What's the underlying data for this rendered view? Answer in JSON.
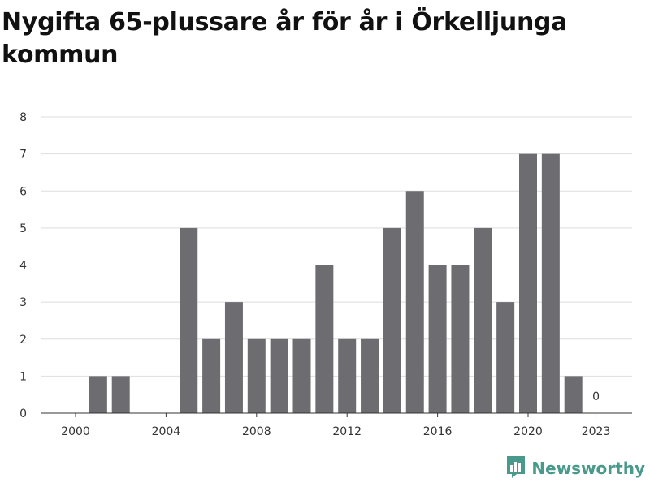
{
  "chart_data": {
    "type": "bar",
    "title": "Nygifta 65-plussare år för år i Örkelljunga kommun",
    "xlabel": "",
    "ylabel": "",
    "categories": [
      2000,
      2001,
      2002,
      2003,
      2004,
      2005,
      2006,
      2007,
      2008,
      2009,
      2010,
      2011,
      2012,
      2013,
      2014,
      2015,
      2016,
      2017,
      2018,
      2019,
      2020,
      2021,
      2022,
      2023
    ],
    "values": [
      0,
      1,
      1,
      0,
      0,
      5,
      2,
      3,
      2,
      2,
      2,
      4,
      2,
      2,
      5,
      6,
      4,
      4,
      5,
      3,
      7,
      7,
      1,
      0
    ],
    "x_tick_labels": [
      "2000",
      "2004",
      "2008",
      "2012",
      "2016",
      "2020",
      "2023"
    ],
    "ylim": [
      0,
      8
    ],
    "y_ticks": [
      0,
      1,
      2,
      3,
      4,
      5,
      6,
      7,
      8
    ],
    "annotations": [
      {
        "category": 2023,
        "text": "0"
      }
    ],
    "grid": true,
    "bar_color": "#6d6c71"
  },
  "branding": {
    "name": "Newsworthy",
    "color": "#4a9a8c",
    "icon": "newsworthy-logo-icon"
  }
}
